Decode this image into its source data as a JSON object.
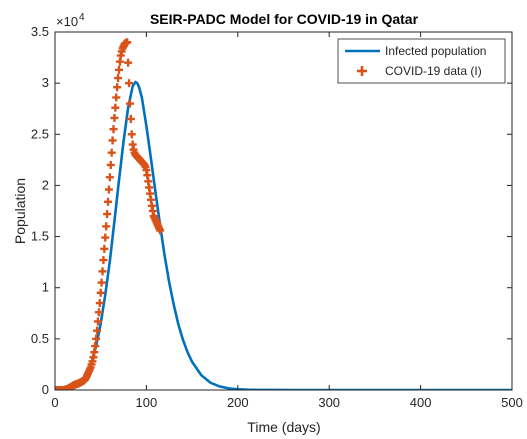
{
  "chart_data": {
    "type": "line",
    "title": "SEIR-PADC Model for COVID-19 in Qatar",
    "xlabel": "Time (days)",
    "ylabel": "Population",
    "xlim": [
      0,
      500
    ],
    "ylim": [
      0,
      35000
    ],
    "y_exponent_label": "×10^4",
    "y_exponent_base": "×10",
    "y_exponent_power": "4",
    "x_ticks": [
      0,
      100,
      200,
      300,
      400,
      500
    ],
    "x_tick_labels": [
      "0",
      "100",
      "200",
      "300",
      "400",
      "500"
    ],
    "y_ticks": [
      0,
      5000,
      10000,
      15000,
      20000,
      25000,
      30000,
      35000
    ],
    "y_tick_labels": [
      "0",
      "0.5",
      "1",
      "1.5",
      "2",
      "2.5",
      "3",
      "3.5"
    ],
    "grid": false,
    "legend_position": "top-right",
    "series": [
      {
        "name": "Infected population",
        "style": "line",
        "color": "#0072BD",
        "x": [
          0,
          10,
          20,
          30,
          35,
          40,
          45,
          50,
          55,
          60,
          65,
          70,
          75,
          80,
          85,
          88,
          90,
          92,
          95,
          100,
          105,
          110,
          115,
          120,
          125,
          130,
          135,
          140,
          145,
          150,
          160,
          170,
          180,
          190,
          200,
          210,
          220,
          240,
          260,
          280,
          300,
          350,
          400,
          450,
          500
        ],
        "y": [
          0,
          50,
          300,
          900,
          1600,
          2700,
          4300,
          6500,
          9300,
          12600,
          16500,
          20500,
          24300,
          27600,
          29700,
          30100,
          30000,
          29600,
          28600,
          25800,
          22600,
          19300,
          16100,
          13100,
          10500,
          8300,
          6400,
          4900,
          3700,
          2750,
          1450,
          720,
          350,
          160,
          70,
          30,
          12,
          3,
          1,
          0,
          0,
          0,
          0,
          0,
          0
        ]
      },
      {
        "name": "COVID-19 data (I)",
        "style": "marker",
        "color": "#D95319",
        "x": [
          1,
          3,
          5,
          7,
          9,
          11,
          13,
          15,
          17,
          19,
          20,
          21,
          22,
          23,
          24,
          25,
          26,
          27,
          28,
          29,
          30,
          31,
          32,
          33,
          34,
          35,
          36,
          37,
          38,
          39,
          40,
          41,
          42,
          43,
          44,
          45,
          46,
          47,
          48,
          49,
          50,
          51,
          52,
          53,
          54,
          55,
          56,
          57,
          58,
          59,
          60,
          61,
          62,
          63,
          64,
          65,
          66,
          67,
          68,
          69,
          70,
          71,
          72,
          73,
          74,
          75,
          76,
          77,
          78,
          79,
          80,
          81,
          82,
          83,
          84,
          85,
          86,
          87,
          88,
          89,
          90,
          91,
          92,
          93,
          94,
          95,
          96,
          97,
          98,
          99,
          100,
          101,
          102,
          103,
          104,
          105,
          106,
          107,
          108,
          109,
          110,
          111,
          112,
          113,
          114,
          115
        ],
        "y": [
          0,
          0,
          0,
          0,
          0,
          50,
          100,
          200,
          300,
          400,
          450,
          480,
          520,
          560,
          600,
          620,
          650,
          700,
          750,
          800,
          850,
          900,
          950,
          1050,
          1200,
          1400,
          1600,
          1800,
          2000,
          2200,
          2500,
          2800,
          3200,
          3700,
          4300,
          5000,
          5800,
          6700,
          7600,
          8500,
          9500,
          10500,
          11600,
          12700,
          13800,
          14900,
          16000,
          17200,
          18400,
          19600,
          20800,
          22000,
          23200,
          24400,
          25500,
          26600,
          27600,
          28600,
          29600,
          30500,
          31300,
          32100,
          32700,
          33100,
          33400,
          33600,
          33800,
          33900,
          33950,
          34000,
          32000,
          30000,
          28000,
          26500,
          25000,
          24000,
          23500,
          23200,
          23000,
          22900,
          22800,
          22700,
          22600,
          22500,
          22400,
          22300,
          22200,
          22100,
          22000,
          21800,
          21500,
          21000,
          20400,
          19800,
          19200,
          18600,
          18000,
          17500,
          17000,
          16800,
          16600,
          16400,
          16200,
          16000,
          15800,
          15600
        ]
      }
    ]
  }
}
